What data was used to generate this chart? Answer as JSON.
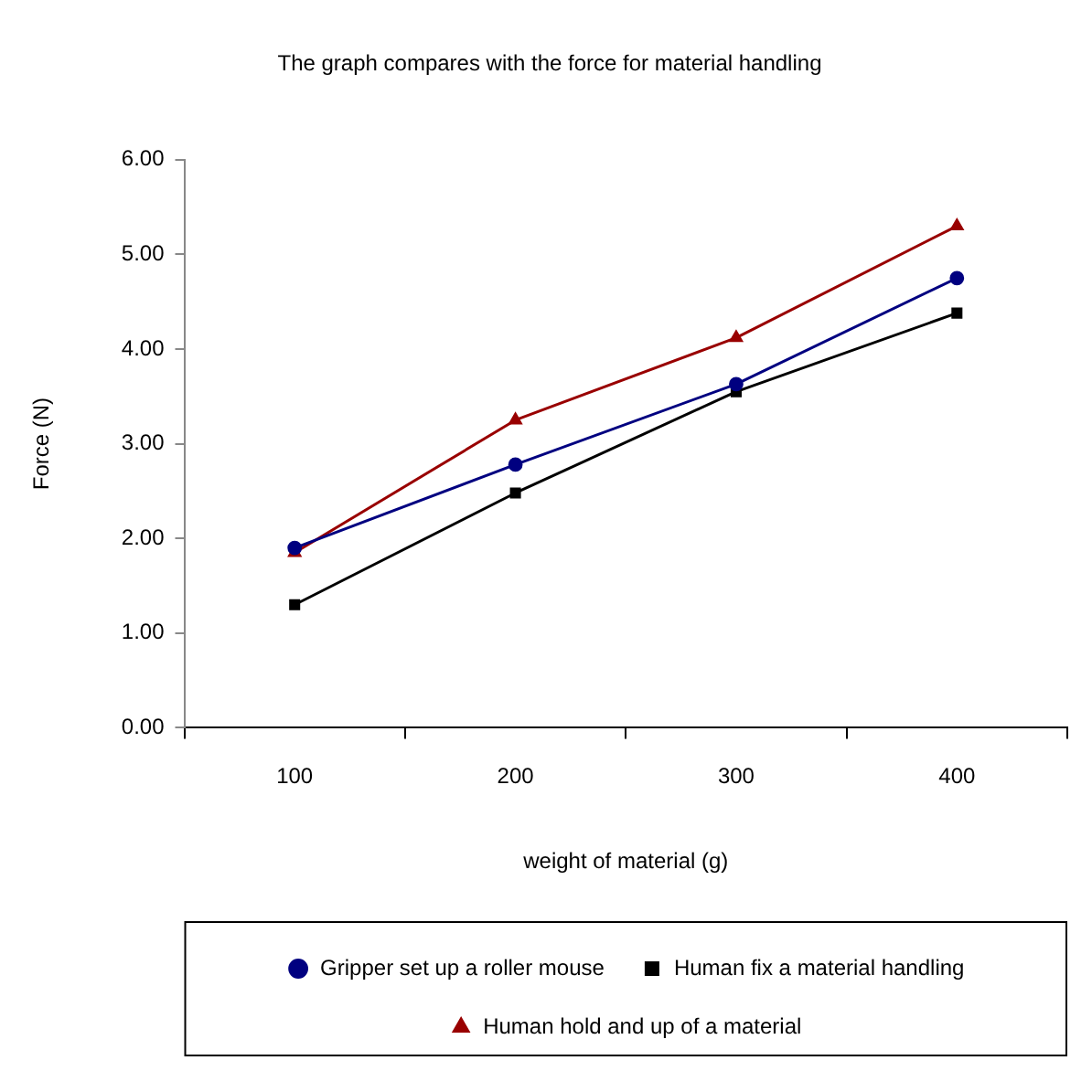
{
  "chart_data": {
    "type": "line",
    "title": "The graph compares with the force for material handling",
    "xlabel": "weight of material (g)",
    "ylabel": "Force (N)",
    "categories": [
      "100",
      "200",
      "300",
      "400"
    ],
    "series": [
      {
        "name": "Gripper set up a roller mouse",
        "color": "#000080",
        "marker": "circle",
        "values": [
          1.9,
          2.78,
          3.63,
          4.75
        ]
      },
      {
        "name": "Human fix a material handling",
        "color": "#000000",
        "marker": "square",
        "values": [
          1.3,
          2.48,
          3.55,
          4.38
        ]
      },
      {
        "name": "Human hold and up of a material",
        "color": "#990000",
        "marker": "triangle",
        "values": [
          1.85,
          3.25,
          4.12,
          5.3
        ]
      }
    ],
    "ylim": [
      0,
      6
    ],
    "yticks": [
      {
        "value": 0,
        "label": "0.00"
      },
      {
        "value": 1,
        "label": "1.00"
      },
      {
        "value": 2,
        "label": "2.00"
      },
      {
        "value": 3,
        "label": "3.00"
      },
      {
        "value": 4,
        "label": "4.00"
      },
      {
        "value": 5,
        "label": "5.00"
      },
      {
        "value": 6,
        "label": "6.00"
      }
    ],
    "grid": false,
    "legend": "bottom",
    "line_style": "solid"
  }
}
